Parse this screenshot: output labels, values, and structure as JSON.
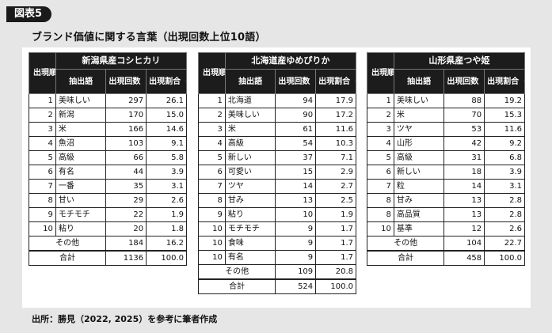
{
  "figure_label": "図表5",
  "title": "ブランド価値に関する言葉（出現回数上位10語）",
  "source": "出所：勝見（2022, 2025）を参考に筆者作成",
  "headers": {
    "rank": "出現順位",
    "word": "抽出語",
    "count": "出現回数（回）",
    "ratio": "出現割合（%）"
  },
  "tables": [
    {
      "brand": "新潟県産コシヒカリ",
      "rows": [
        {
          "rank": "1",
          "word": "美味しい",
          "count": "297",
          "ratio": "26.1"
        },
        {
          "rank": "2",
          "word": "新潟",
          "count": "170",
          "ratio": "15.0"
        },
        {
          "rank": "3",
          "word": "米",
          "count": "166",
          "ratio": "14.6"
        },
        {
          "rank": "4",
          "word": "魚沼",
          "count": "103",
          "ratio": "9.1"
        },
        {
          "rank": "5",
          "word": "高級",
          "count": "66",
          "ratio": "5.8"
        },
        {
          "rank": "6",
          "word": "有名",
          "count": "44",
          "ratio": "3.9"
        },
        {
          "rank": "7",
          "word": "一番",
          "count": "35",
          "ratio": "3.1"
        },
        {
          "rank": "8",
          "word": "甘い",
          "count": "29",
          "ratio": "2.6"
        },
        {
          "rank": "9",
          "word": "モチモチ",
          "count": "22",
          "ratio": "1.9"
        },
        {
          "rank": "10",
          "word": "粘り",
          "count": "20",
          "ratio": "1.8"
        }
      ],
      "other": {
        "label": "その他",
        "count": "184",
        "ratio": "16.2"
      },
      "total": {
        "label": "合計",
        "count": "1136",
        "ratio": "100.0"
      }
    },
    {
      "brand": "北海道産ゆめぴりか",
      "rows": [
        {
          "rank": "1",
          "word": "北海道",
          "count": "94",
          "ratio": "17.9"
        },
        {
          "rank": "2",
          "word": "美味しい",
          "count": "90",
          "ratio": "17.2"
        },
        {
          "rank": "3",
          "word": "米",
          "count": "61",
          "ratio": "11.6"
        },
        {
          "rank": "4",
          "word": "高級",
          "count": "54",
          "ratio": "10.3"
        },
        {
          "rank": "5",
          "word": "新しい",
          "count": "37",
          "ratio": "7.1"
        },
        {
          "rank": "6",
          "word": "可愛い",
          "count": "15",
          "ratio": "2.9"
        },
        {
          "rank": "7",
          "word": "ツヤ",
          "count": "14",
          "ratio": "2.7"
        },
        {
          "rank": "8",
          "word": "甘み",
          "count": "13",
          "ratio": "2.5"
        },
        {
          "rank": "9",
          "word": "粘り",
          "count": "10",
          "ratio": "1.9"
        },
        {
          "rank": "10",
          "word": "モチモチ",
          "count": "9",
          "ratio": "1.7"
        },
        {
          "rank": "10",
          "word": "食味",
          "count": "9",
          "ratio": "1.7"
        },
        {
          "rank": "10",
          "word": "有名",
          "count": "9",
          "ratio": "1.7"
        }
      ],
      "other": {
        "label": "その他",
        "count": "109",
        "ratio": "20.8"
      },
      "total": {
        "label": "合計",
        "count": "524",
        "ratio": "100.0"
      }
    },
    {
      "brand": "山形県産つや姫",
      "rows": [
        {
          "rank": "1",
          "word": "美味しい",
          "count": "88",
          "ratio": "19.2"
        },
        {
          "rank": "2",
          "word": "米",
          "count": "70",
          "ratio": "15.3"
        },
        {
          "rank": "3",
          "word": "ツヤ",
          "count": "53",
          "ratio": "11.6"
        },
        {
          "rank": "4",
          "word": "山形",
          "count": "42",
          "ratio": "9.2"
        },
        {
          "rank": "5",
          "word": "高級",
          "count": "31",
          "ratio": "6.8"
        },
        {
          "rank": "6",
          "word": "新しい",
          "count": "18",
          "ratio": "3.9"
        },
        {
          "rank": "7",
          "word": "粒",
          "count": "14",
          "ratio": "3.1"
        },
        {
          "rank": "8",
          "word": "甘み",
          "count": "13",
          "ratio": "2.8"
        },
        {
          "rank": "8",
          "word": "高品質",
          "count": "13",
          "ratio": "2.8"
        },
        {
          "rank": "10",
          "word": "基準",
          "count": "12",
          "ratio": "2.6"
        }
      ],
      "other": {
        "label": "その他",
        "count": "104",
        "ratio": "22.7"
      },
      "total": {
        "label": "合計",
        "count": "458",
        "ratio": "100.0"
      }
    }
  ]
}
